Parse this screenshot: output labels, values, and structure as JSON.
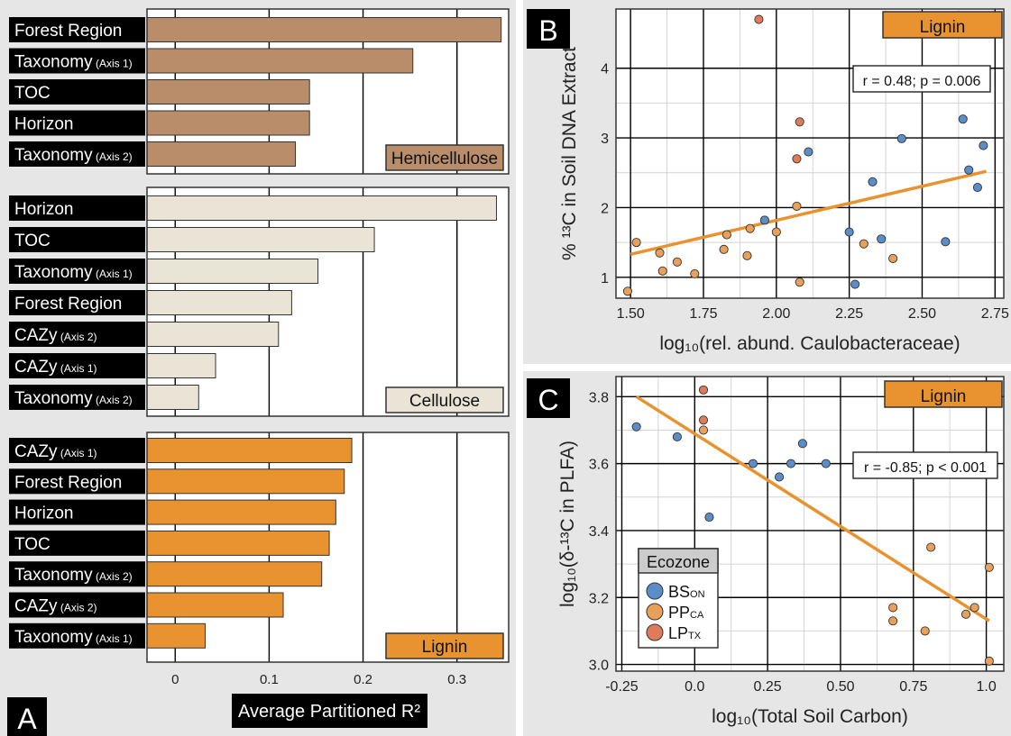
{
  "panel_letters": {
    "a": "A",
    "b": "B",
    "c": "C"
  },
  "colors": {
    "hemicellulose": "#B98D6A",
    "cellulose": "#EAE4D6",
    "lignin": "#E8932F",
    "bs_on": "#5B8DC9",
    "pp_ca": "#E8A05A",
    "lp_tx": "#E07B5A",
    "trend": "#E8932F"
  },
  "chart_data": [
    {
      "id": "A",
      "type": "bar",
      "orientation": "horizontal",
      "xlabel": "Average Partitioned R²",
      "xlim": [
        -0.03,
        0.355
      ],
      "xticks": [
        0,
        0.1,
        0.2,
        0.3
      ],
      "xtick_labels": [
        "0",
        "0.1",
        "0.2",
        "0.3"
      ],
      "subpanels": [
        {
          "label": "Hemicellulose",
          "color_key": "hemicellulose",
          "bars": [
            {
              "name": "Forest Region",
              "sub": "",
              "value": 0.347
            },
            {
              "name": "Taxonomy",
              "sub": " (Axis 1)",
              "value": 0.253
            },
            {
              "name": "TOC",
              "sub": "",
              "value": 0.143
            },
            {
              "name": "Horizon",
              "sub": "",
              "value": 0.143
            },
            {
              "name": "Taxonomy",
              "sub": " (Axis 2)",
              "value": 0.128
            }
          ]
        },
        {
          "label": "Cellulose",
          "color_key": "cellulose",
          "bars": [
            {
              "name": "Horizon",
              "sub": "",
              "value": 0.342
            },
            {
              "name": "TOC",
              "sub": "",
              "value": 0.212
            },
            {
              "name": "Taxonomy",
              "sub": " (Axis 1)",
              "value": 0.152
            },
            {
              "name": "Forest Region",
              "sub": "",
              "value": 0.124
            },
            {
              "name": "CAZy",
              "sub": " (Axis 2)",
              "value": 0.11
            },
            {
              "name": "CAZy",
              "sub": " (Axis 1)",
              "value": 0.043
            },
            {
              "name": "Taxonomy",
              "sub": " (Axis 2)",
              "value": 0.025
            }
          ]
        },
        {
          "label": "Lignin",
          "color_key": "lignin",
          "bars": [
            {
              "name": "CAZy",
              "sub": " (Axis 1)",
              "value": 0.188
            },
            {
              "name": "Forest Region",
              "sub": "",
              "value": 0.18
            },
            {
              "name": "Horizon",
              "sub": "",
              "value": 0.171
            },
            {
              "name": "TOC",
              "sub": "",
              "value": 0.164
            },
            {
              "name": "Taxonomy",
              "sub": " (Axis 2)",
              "value": 0.156
            },
            {
              "name": "CAZy",
              "sub": " (Axis 2)",
              "value": 0.115
            },
            {
              "name": "Taxonomy",
              "sub": " (Axis 1)",
              "value": 0.032
            }
          ]
        }
      ]
    },
    {
      "id": "B",
      "type": "scatter",
      "title": "Lignin",
      "xlabel": "log₁₀(rel. abund. Caulobacteraceae)",
      "ylabel": "% ¹³C in Soil DNA Extract",
      "xlim": [
        1.45,
        2.78
      ],
      "ylim": [
        0.7,
        4.85
      ],
      "xticks": [
        1.5,
        1.75,
        2.0,
        2.25,
        2.5,
        2.75
      ],
      "xtick_labels": [
        "1.50",
        "1.75",
        "2.00",
        "2.25",
        "2.50",
        "2.75"
      ],
      "yticks": [
        1,
        2,
        3,
        4
      ],
      "ytick_labels": [
        "1",
        "2",
        "3",
        "4"
      ],
      "annotation": "r = 0.48; p = 0.006",
      "trendline": [
        [
          1.5,
          1.33
        ],
        [
          2.72,
          2.52
        ]
      ],
      "points": [
        {
          "x": 1.49,
          "y": 0.8,
          "g": "pp_ca"
        },
        {
          "x": 1.52,
          "y": 1.5,
          "g": "pp_ca"
        },
        {
          "x": 1.6,
          "y": 1.35,
          "g": "pp_ca"
        },
        {
          "x": 1.61,
          "y": 1.09,
          "g": "pp_ca"
        },
        {
          "x": 1.66,
          "y": 1.22,
          "g": "pp_ca"
        },
        {
          "x": 1.72,
          "y": 1.05,
          "g": "pp_ca"
        },
        {
          "x": 1.82,
          "y": 1.4,
          "g": "pp_ca"
        },
        {
          "x": 1.83,
          "y": 1.61,
          "g": "pp_ca"
        },
        {
          "x": 1.9,
          "y": 1.31,
          "g": "pp_ca"
        },
        {
          "x": 1.91,
          "y": 1.7,
          "g": "pp_ca"
        },
        {
          "x": 1.94,
          "y": 4.7,
          "g": "lp_tx"
        },
        {
          "x": 1.96,
          "y": 1.82,
          "g": "bs_on"
        },
        {
          "x": 2.0,
          "y": 1.65,
          "g": "pp_ca"
        },
        {
          "x": 2.07,
          "y": 2.7,
          "g": "lp_tx"
        },
        {
          "x": 2.07,
          "y": 2.02,
          "g": "pp_ca"
        },
        {
          "x": 2.08,
          "y": 3.23,
          "g": "lp_tx"
        },
        {
          "x": 2.08,
          "y": 0.93,
          "g": "pp_ca"
        },
        {
          "x": 2.11,
          "y": 2.8,
          "g": "bs_on"
        },
        {
          "x": 2.25,
          "y": 1.65,
          "g": "bs_on"
        },
        {
          "x": 2.27,
          "y": 0.9,
          "g": "bs_on"
        },
        {
          "x": 2.3,
          "y": 1.48,
          "g": "pp_ca"
        },
        {
          "x": 2.33,
          "y": 2.37,
          "g": "bs_on"
        },
        {
          "x": 2.36,
          "y": 1.55,
          "g": "bs_on"
        },
        {
          "x": 2.4,
          "y": 1.27,
          "g": "pp_ca"
        },
        {
          "x": 2.43,
          "y": 2.99,
          "g": "bs_on"
        },
        {
          "x": 2.58,
          "y": 1.51,
          "g": "bs_on"
        },
        {
          "x": 2.64,
          "y": 3.27,
          "g": "bs_on"
        },
        {
          "x": 2.66,
          "y": 2.54,
          "g": "bs_on"
        },
        {
          "x": 2.69,
          "y": 2.29,
          "g": "bs_on"
        },
        {
          "x": 2.71,
          "y": 2.89,
          "g": "bs_on"
        }
      ]
    },
    {
      "id": "C",
      "type": "scatter",
      "title": "Lignin",
      "xlabel": "log₁₀(Total Soil Carbon)",
      "ylabel": "log₁₀(δ-¹³C in PLFA)",
      "xlim": [
        -0.27,
        1.06
      ],
      "ylim": [
        2.98,
        3.86
      ],
      "xticks": [
        -0.25,
        0,
        0.25,
        0.5,
        0.75,
        1.0
      ],
      "xtick_labels": [
        "-0.25",
        "0.0",
        "0.25",
        "0.50",
        "0.75",
        "1.0"
      ],
      "yticks": [
        3.0,
        3.2,
        3.4,
        3.6,
        3.8
      ],
      "ytick_labels": [
        "3.0",
        "3.2",
        "3.4",
        "3.6",
        "3.8"
      ],
      "annotation": "r = -0.85; p < 0.001",
      "trendline": [
        [
          -0.2,
          3.8
        ],
        [
          1.01,
          3.13
        ]
      ],
      "legend": {
        "title": "Ecozone",
        "entries": [
          {
            "key": "bs_on",
            "main": "BS",
            "sub": "ON"
          },
          {
            "key": "pp_ca",
            "main": "PP",
            "sub": "CA"
          },
          {
            "key": "lp_tx",
            "main": "LP",
            "sub": "TX"
          }
        ]
      },
      "points": [
        {
          "x": -0.2,
          "y": 3.71,
          "g": "bs_on"
        },
        {
          "x": -0.06,
          "y": 3.68,
          "g": "bs_on"
        },
        {
          "x": 0.03,
          "y": 3.82,
          "g": "lp_tx"
        },
        {
          "x": 0.03,
          "y": 3.73,
          "g": "lp_tx"
        },
        {
          "x": 0.03,
          "y": 3.7,
          "g": "pp_ca"
        },
        {
          "x": 0.05,
          "y": 3.44,
          "g": "bs_on"
        },
        {
          "x": 0.2,
          "y": 3.6,
          "g": "bs_on"
        },
        {
          "x": 0.29,
          "y": 3.56,
          "g": "bs_on"
        },
        {
          "x": 0.33,
          "y": 3.6,
          "g": "bs_on"
        },
        {
          "x": 0.37,
          "y": 3.66,
          "g": "bs_on"
        },
        {
          "x": 0.45,
          "y": 3.6,
          "g": "bs_on"
        },
        {
          "x": 0.68,
          "y": 3.17,
          "g": "pp_ca"
        },
        {
          "x": 0.68,
          "y": 3.13,
          "g": "pp_ca"
        },
        {
          "x": 0.79,
          "y": 3.1,
          "g": "pp_ca"
        },
        {
          "x": 0.81,
          "y": 3.35,
          "g": "pp_ca"
        },
        {
          "x": 0.93,
          "y": 3.15,
          "g": "pp_ca"
        },
        {
          "x": 0.96,
          "y": 3.17,
          "g": "pp_ca"
        },
        {
          "x": 1.01,
          "y": 3.29,
          "g": "pp_ca"
        },
        {
          "x": 1.01,
          "y": 3.01,
          "g": "pp_ca"
        }
      ]
    }
  ]
}
